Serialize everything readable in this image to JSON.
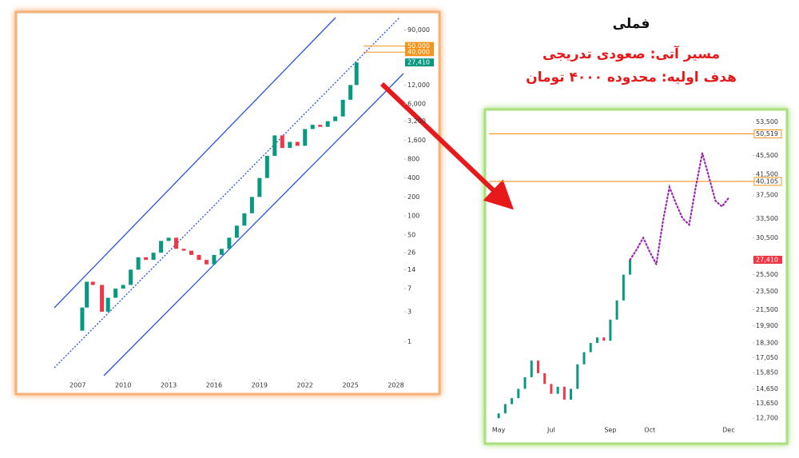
{
  "header": {
    "title": "فملی",
    "lines": [
      "مسیر آتی: صعودی تدریجی",
      "هدف اولیه: محدوده ۴۰۰۰ تومان"
    ]
  },
  "chart_data": [
    {
      "type": "candlestick",
      "log_scale": true,
      "up_color": "#089981",
      "down_color": "#f23645",
      "xlim": [
        2005.3,
        2028.5
      ],
      "ylim": [
        0.25,
        150000
      ],
      "xticks": [
        2007,
        2010,
        2013,
        2016,
        2019,
        2022,
        2025,
        2028
      ],
      "yticks": [
        1,
        3,
        7,
        14,
        26,
        50,
        100,
        200,
        400,
        800,
        {
          "value": 1600,
          "label": "1,600"
        },
        {
          "value": 3200,
          "label": "3,200"
        },
        {
          "value": 6000,
          "label": "6,000"
        },
        {
          "value": 12000,
          "label": "12,000"
        },
        {
          "value": 90000,
          "label": "90,000"
        }
      ],
      "x": [
        2007.3,
        2007.6,
        2008,
        2008.6,
        2009,
        2009.5,
        2010,
        2010.5,
        2011,
        2011.5,
        2012,
        2012.5,
        2013,
        2013.5,
        2014,
        2014.5,
        2015,
        2015.5,
        2016,
        2016.5,
        2017,
        2017.5,
        2018,
        2018.5,
        2019,
        2019.5,
        2020,
        2020.5,
        2021,
        2021.5,
        2022,
        2022.5,
        2023,
        2023.5,
        2024,
        2024.5,
        2025,
        2025.4
      ],
      "open": [
        1.5,
        3.5,
        9,
        8,
        3,
        5,
        7,
        8,
        14,
        22,
        20,
        26,
        40,
        45,
        30,
        28,
        24,
        20,
        17,
        24,
        30,
        45,
        70,
        110,
        200,
        400,
        900,
        1900,
        1200,
        1500,
        1300,
        2400,
        2800,
        2600,
        3200,
        3800,
        7000,
        12000
      ],
      "close": [
        3.5,
        9,
        8,
        3,
        5,
        7,
        8,
        14,
        22,
        20,
        26,
        40,
        45,
        30,
        28,
        24,
        20,
        17,
        24,
        30,
        45,
        70,
        110,
        200,
        400,
        900,
        1900,
        1200,
        1500,
        1300,
        2400,
        2800,
        2600,
        3200,
        3800,
        7000,
        12000,
        27410
      ],
      "price_labels": [
        {
          "value": 50000,
          "label": "50,000",
          "color": "#f7931a"
        },
        {
          "value": 40000,
          "label": "40,000",
          "color": "#f7931a"
        },
        {
          "value": 27410,
          "label": "27,410",
          "color": "#089981"
        }
      ]
    },
    {
      "type": "candlestick",
      "log_scale": true,
      "up_color": "#089981",
      "down_color": "#f23645",
      "ylim": [
        11900,
        56200
      ],
      "yticks": [
        {
          "value": 53500,
          "label": "53,500"
        },
        {
          "value": 45500,
          "label": "45,500"
        },
        {
          "value": 41500,
          "label": "41,500"
        },
        {
          "value": 37500,
          "label": "37,500"
        },
        {
          "value": 33500,
          "label": "33,500"
        },
        {
          "value": 30500,
          "label": "30,500"
        },
        {
          "value": 27500,
          "label": "27,500"
        },
        {
          "value": 25500,
          "label": "25,500"
        },
        {
          "value": 23500,
          "label": "23,500"
        },
        {
          "value": 21500,
          "label": "21,500"
        },
        {
          "value": 19900,
          "label": "19,900"
        },
        {
          "value": 18300,
          "label": "18,300"
        },
        {
          "value": 17050,
          "label": "17,050"
        },
        {
          "value": 15850,
          "label": "15,850"
        },
        {
          "value": 14650,
          "label": "14,650"
        },
        {
          "value": 13650,
          "label": "13,650"
        },
        {
          "value": 12700,
          "label": "12,700"
        }
      ],
      "categories": [
        "May",
        null,
        null,
        null,
        null,
        null,
        null,
        null,
        "Jul",
        null,
        null,
        null,
        null,
        null,
        null,
        null,
        null,
        "Sep",
        null,
        null,
        null,
        null,
        null,
        "Oct",
        null,
        null,
        null,
        null,
        null,
        null,
        null,
        null,
        null,
        null,
        null,
        "Dec"
      ],
      "open": [
        12700,
        13000,
        13600,
        14000,
        14650,
        15500,
        16800,
        15800,
        15000,
        14300,
        14800,
        13900,
        14650,
        16500,
        17500,
        18300,
        18800,
        18500,
        20500,
        22500,
        25500,
        null,
        null,
        null,
        null,
        null,
        null,
        null,
        null,
        null,
        null,
        null,
        null,
        null,
        null,
        null
      ],
      "close": [
        13000,
        13600,
        14000,
        14650,
        15500,
        16800,
        15800,
        15000,
        14300,
        14800,
        13900,
        14650,
        16500,
        17500,
        18300,
        18800,
        18500,
        20500,
        22500,
        25500,
        27410,
        null,
        null,
        null,
        null,
        null,
        null,
        null,
        null,
        null,
        null,
        null,
        null,
        null,
        null,
        null
      ],
      "projection": {
        "color": "#9c27b0",
        "values": [
          null,
          null,
          null,
          null,
          null,
          null,
          null,
          null,
          null,
          null,
          null,
          null,
          null,
          null,
          null,
          null,
          null,
          null,
          null,
          null,
          27410,
          28800,
          30500,
          28500,
          26800,
          33000,
          39000,
          36000,
          33500,
          32500,
          39000,
          46000,
          41000,
          36500,
          35500,
          37000
        ]
      },
      "levels": [
        {
          "value": 50519,
          "label": "50,519",
          "color": "#f7931a"
        },
        {
          "value": 40105,
          "label": "40,105",
          "color": "#f7931a"
        }
      ],
      "price_labels": [
        {
          "value": 27410,
          "label": "27,410",
          "color": "#f23645"
        }
      ]
    }
  ]
}
